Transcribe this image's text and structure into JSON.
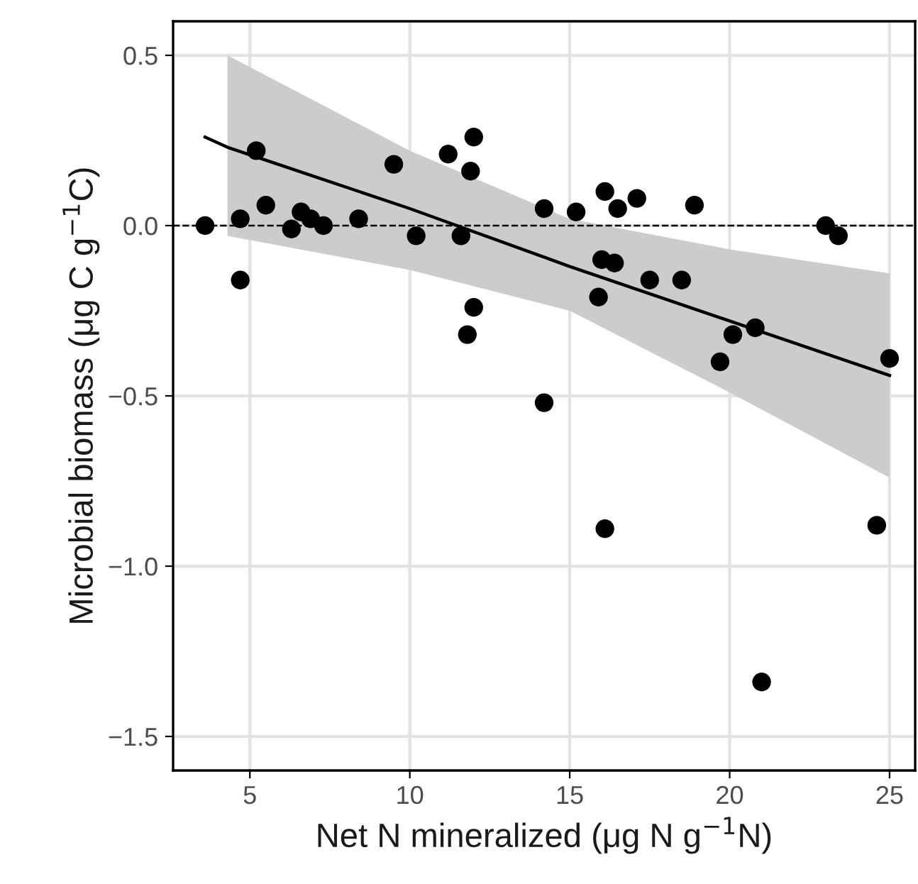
{
  "chart_data": {
    "type": "scatter",
    "xlabel": "Net N mineralized (μg N g$^{−1}$N)",
    "ylabel": "Microbial biomass (μg C g$^{−1}$C)",
    "series": [
      {
        "color": "#000000",
        "marker": "circle",
        "x": [
          3.6,
          4.7,
          5.2,
          5.5,
          4.7,
          6.3,
          6.6,
          6.9,
          7.3,
          8.4,
          9.5,
          10.2,
          11.2,
          12.0,
          11.9,
          11.6,
          12.0,
          11.8,
          14.2,
          14.2,
          15.2,
          16.1,
          16.5,
          17.1,
          18.9,
          16.0,
          16.4,
          15.9,
          17.5,
          18.5,
          20.8,
          20.1,
          19.7,
          23.0,
          23.4,
          25.0,
          16.1,
          24.6,
          21.0
        ],
        "values": [
          0.0,
          0.02,
          0.22,
          0.06,
          -0.16,
          -0.01,
          0.04,
          0.02,
          0.0,
          0.02,
          0.18,
          -0.03,
          0.21,
          0.26,
          0.16,
          -0.03,
          -0.24,
          -0.32,
          0.05,
          -0.52,
          0.04,
          0.1,
          0.05,
          0.08,
          0.06,
          -0.1,
          -0.11,
          -0.21,
          -0.16,
          -0.16,
          -0.3,
          -0.32,
          -0.4,
          0.0,
          -0.03,
          -0.39,
          -0.89,
          -0.88,
          -1.34
        ]
      },
      {
        "type": "line",
        "color": "#000000",
        "marker": "none",
        "line_style": "solid",
        "x": [
          3.6,
          4.3,
          10,
          15,
          20,
          25.0
        ],
        "values": [
          0.26,
          0.23,
          0.05,
          -0.12,
          -0.28,
          -0.44
        ],
        "lower": [
          null,
          -0.03,
          -0.13,
          -0.25,
          -0.49,
          -0.74
        ],
        "upper": [
          null,
          0.5,
          0.22,
          0.02,
          -0.07,
          -0.14
        ]
      }
    ],
    "ref_lines": [
      {
        "axis": "y",
        "value": 0,
        "label": null,
        "color": "#000000",
        "line_style": "dashed"
      }
    ],
    "xlim": [
      2.6,
      25.8
    ],
    "ylim": [
      -1.6,
      0.6
    ],
    "xticks": [
      5,
      10,
      15,
      20,
      25
    ],
    "yticks": [
      {
        "value": 0.5,
        "label": "0.5"
      },
      {
        "value": 0,
        "label": "0.0"
      },
      {
        "value": -0.5,
        "label": "−0.5"
      },
      {
        "value": -1,
        "label": "−1.0"
      },
      {
        "value": -1.5,
        "label": "−1.5"
      }
    ],
    "grid": true,
    "legend": false
  }
}
